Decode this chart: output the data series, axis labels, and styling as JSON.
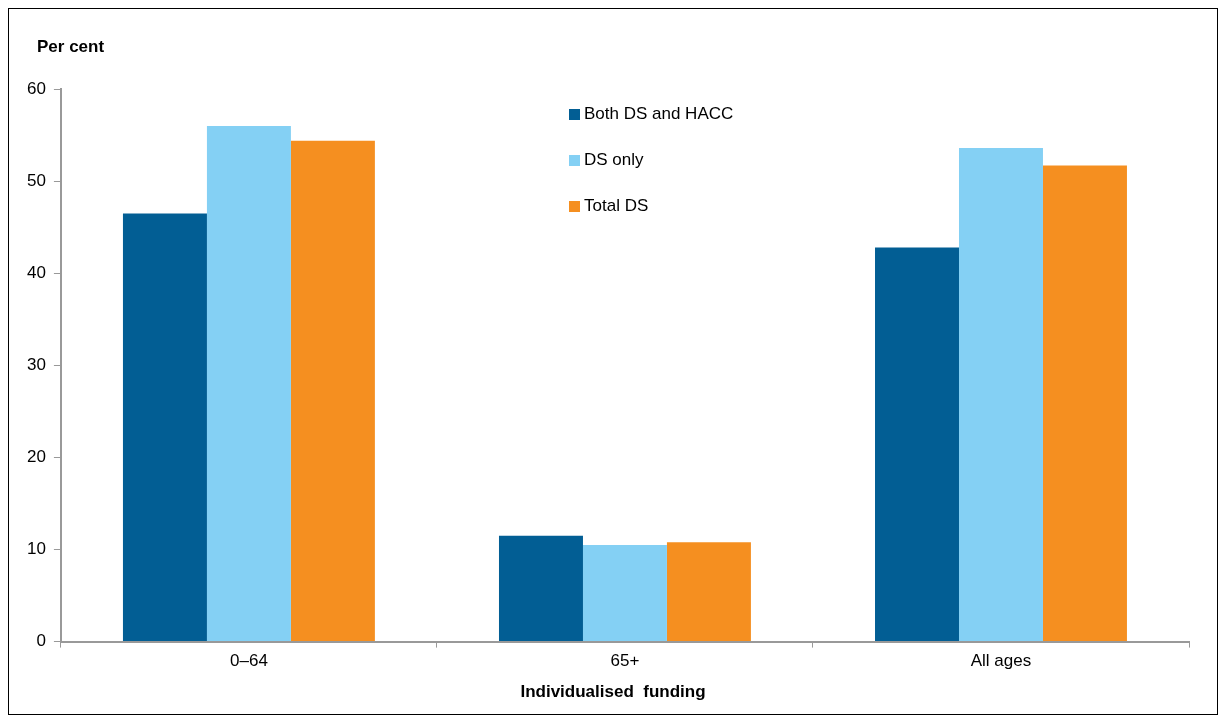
{
  "chart_data": {
    "type": "bar",
    "ylabel": "Per cent",
    "xlabel": "Individualised  funding",
    "categories": [
      "0–64",
      "65+",
      "All ages"
    ],
    "series": [
      {
        "name": "Both DS and HACC",
        "color": "#025e94",
        "values": [
          46.5,
          11.5,
          42.8
        ]
      },
      {
        "name": "DS only",
        "color": "#84d0f4",
        "values": [
          56.0,
          10.5,
          53.6
        ]
      },
      {
        "name": "Total DS",
        "color": "#f58f20",
        "values": [
          54.4,
          10.8,
          51.7
        ]
      }
    ],
    "ylim": [
      0,
      60
    ],
    "yticks": [
      0,
      10,
      20,
      30,
      40,
      50,
      60
    ],
    "grid": false,
    "legend": "top"
  }
}
